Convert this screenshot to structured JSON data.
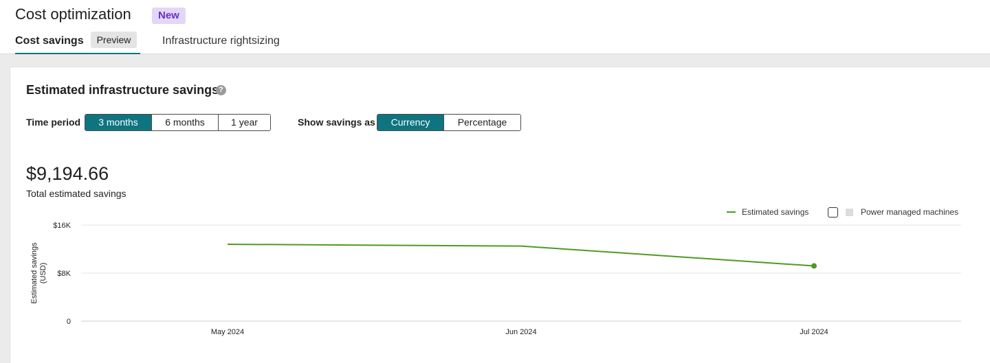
{
  "header": {
    "title": "Cost optimization",
    "badge": "New",
    "tabs": [
      {
        "label": "Cost savings",
        "badge": "Preview",
        "active": true
      },
      {
        "label": "Infrastructure rightsizing",
        "active": false
      }
    ]
  },
  "savings": {
    "title": "Estimated infrastructure savings",
    "help_icon": "?",
    "time_period": {
      "label": "Time period",
      "options": [
        "3 months",
        "6 months",
        "1 year"
      ],
      "selected": "3 months"
    },
    "show_as": {
      "label": "Show savings as",
      "options": [
        "Currency",
        "Percentage"
      ],
      "selected": "Currency"
    },
    "total_value": "$9,194.66",
    "total_label": "Total estimated savings",
    "legend": {
      "estimated_savings": "Estimated savings",
      "power_managed": "Power managed machines",
      "power_managed_checked": false
    }
  },
  "colors": {
    "accent": "#0e7480",
    "series": "#4e9a21",
    "badge_bg": "#e3d7f7",
    "badge_text": "#6b2fc9"
  },
  "chart_data": {
    "type": "line",
    "categories": [
      "May 2024",
      "Jun 2024",
      "Jul 2024"
    ],
    "series": [
      {
        "name": "Estimated savings",
        "values": [
          12800,
          12500,
          9194.66
        ]
      }
    ],
    "ylabel": "Estimated savings (USD)",
    "ylim": [
      0,
      16000
    ],
    "yticks": [
      {
        "value": 0,
        "label": "0"
      },
      {
        "value": 8000,
        "label": "$8K"
      },
      {
        "value": 16000,
        "label": "$16K"
      }
    ],
    "grid": true,
    "legend_placement": "top-right"
  }
}
